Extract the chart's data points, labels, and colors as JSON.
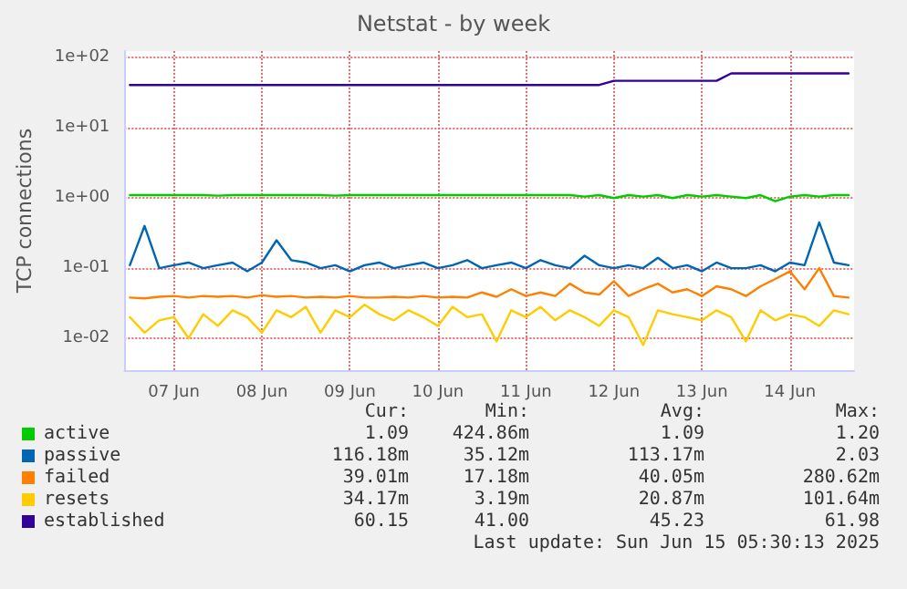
{
  "chart_data": {
    "type": "line",
    "title": "Netstat - by week",
    "ylabel": "TCP connections",
    "x": [
      "2025-06-07T00:00",
      "2025-06-07T04:00",
      "2025-06-07T08:00",
      "2025-06-07T12:00",
      "2025-06-07T16:00",
      "2025-06-07T20:00",
      "2025-06-08T00:00",
      "2025-06-08T04:00",
      "2025-06-08T08:00",
      "2025-06-08T12:00",
      "2025-06-08T16:00",
      "2025-06-08T20:00",
      "2025-06-09T00:00",
      "2025-06-09T04:00",
      "2025-06-09T08:00",
      "2025-06-09T12:00",
      "2025-06-09T16:00",
      "2025-06-09T20:00",
      "2025-06-10T00:00",
      "2025-06-10T04:00",
      "2025-06-10T08:00",
      "2025-06-10T12:00",
      "2025-06-10T16:00",
      "2025-06-10T20:00",
      "2025-06-11T00:00",
      "2025-06-11T04:00",
      "2025-06-11T08:00",
      "2025-06-11T12:00",
      "2025-06-11T16:00",
      "2025-06-11T20:00",
      "2025-06-12T00:00",
      "2025-06-12T04:00",
      "2025-06-12T08:00",
      "2025-06-12T12:00",
      "2025-06-12T16:00",
      "2025-06-12T20:00",
      "2025-06-13T00:00",
      "2025-06-13T04:00",
      "2025-06-13T08:00",
      "2025-06-13T12:00",
      "2025-06-13T16:00",
      "2025-06-13T20:00",
      "2025-06-14T00:00",
      "2025-06-14T04:00",
      "2025-06-14T08:00",
      "2025-06-14T12:00",
      "2025-06-14T16:00",
      "2025-06-14T20:00",
      "2025-06-15T00:00",
      "2025-06-15T04:00"
    ],
    "series": [
      {
        "name": "active",
        "color": "#00cc00",
        "values": [
          1.1,
          1.1,
          1.1,
          1.1,
          1.1,
          1.1,
          1.08,
          1.1,
          1.1,
          1.1,
          1.1,
          1.1,
          1.1,
          1.1,
          1.08,
          1.1,
          1.1,
          1.1,
          1.1,
          1.1,
          1.1,
          1.1,
          1.1,
          1.1,
          1.1,
          1.1,
          1.1,
          1.1,
          1.1,
          1.1,
          1.1,
          1.05,
          1.1,
          1.0,
          1.1,
          1.05,
          1.1,
          1.0,
          1.1,
          1.05,
          1.1,
          1.05,
          1.0,
          1.1,
          0.9,
          1.05,
          1.1,
          1.05,
          1.1,
          1.1
        ]
      },
      {
        "name": "passive",
        "color": "#0066b3",
        "values": [
          0.11,
          0.4,
          0.1,
          0.11,
          0.12,
          0.1,
          0.11,
          0.12,
          0.09,
          0.12,
          0.25,
          0.13,
          0.12,
          0.1,
          0.11,
          0.09,
          0.11,
          0.12,
          0.1,
          0.11,
          0.12,
          0.1,
          0.11,
          0.13,
          0.1,
          0.11,
          0.12,
          0.1,
          0.13,
          0.11,
          0.1,
          0.15,
          0.11,
          0.1,
          0.11,
          0.1,
          0.14,
          0.1,
          0.11,
          0.09,
          0.12,
          0.1,
          0.1,
          0.11,
          0.09,
          0.12,
          0.11,
          0.45,
          0.12,
          0.11
        ]
      },
      {
        "name": "failed",
        "color": "#ff8000",
        "values": [
          0.038,
          0.037,
          0.039,
          0.04,
          0.038,
          0.04,
          0.039,
          0.04,
          0.038,
          0.041,
          0.039,
          0.04,
          0.038,
          0.039,
          0.038,
          0.04,
          0.038,
          0.038,
          0.039,
          0.038,
          0.04,
          0.038,
          0.039,
          0.038,
          0.045,
          0.039,
          0.05,
          0.04,
          0.045,
          0.04,
          0.06,
          0.045,
          0.042,
          0.065,
          0.04,
          0.05,
          0.06,
          0.045,
          0.05,
          0.04,
          0.055,
          0.05,
          0.04,
          0.055,
          0.07,
          0.09,
          0.05,
          0.1,
          0.04,
          0.038
        ]
      },
      {
        "name": "resets",
        "color": "#ffcc00",
        "values": [
          0.02,
          0.012,
          0.018,
          0.02,
          0.01,
          0.022,
          0.015,
          0.025,
          0.02,
          0.012,
          0.025,
          0.02,
          0.028,
          0.012,
          0.025,
          0.02,
          0.03,
          0.022,
          0.018,
          0.025,
          0.02,
          0.015,
          0.028,
          0.02,
          0.022,
          0.009,
          0.025,
          0.02,
          0.028,
          0.018,
          0.025,
          0.02,
          0.015,
          0.025,
          0.02,
          0.008,
          0.025,
          0.022,
          0.02,
          0.018,
          0.025,
          0.02,
          0.009,
          0.025,
          0.018,
          0.022,
          0.02,
          0.015,
          0.025,
          0.022
        ]
      },
      {
        "name": "established",
        "color": "#330099",
        "values": [
          41,
          41,
          41,
          41,
          41,
          41,
          41,
          41,
          41,
          41,
          41,
          41,
          41,
          41,
          41,
          41,
          41,
          41,
          41,
          41,
          41,
          41,
          41,
          41,
          41,
          41,
          41,
          41,
          41,
          41,
          41,
          41,
          41,
          47,
          47,
          47,
          47,
          47,
          47,
          47,
          47,
          60,
          60,
          60,
          60,
          60,
          60,
          60,
          60,
          60
        ]
      }
    ],
    "xlim": [
      "2025-06-06T22:30",
      "2025-06-15T05:30"
    ],
    "xticks": [
      {
        "value": "2025-06-07T12:00",
        "label": "07 Jun"
      },
      {
        "value": "2025-06-08T12:00",
        "label": "08 Jun"
      },
      {
        "value": "2025-06-09T12:00",
        "label": "09 Jun"
      },
      {
        "value": "2025-06-10T12:00",
        "label": "10 Jun"
      },
      {
        "value": "2025-06-11T12:00",
        "label": "11 Jun"
      },
      {
        "value": "2025-06-12T12:00",
        "label": "12 Jun"
      },
      {
        "value": "2025-06-13T12:00",
        "label": "13 Jun"
      },
      {
        "value": "2025-06-14T12:00",
        "label": "14 Jun"
      }
    ],
    "ylim": [
      0.0035,
      125
    ],
    "yticks": [
      {
        "value": 0.01,
        "label": "1e-02"
      },
      {
        "value": 0.1,
        "label": "1e-01"
      },
      {
        "value": 1,
        "label": "1e+00"
      },
      {
        "value": 10,
        "label": "1e+01"
      },
      {
        "value": 100,
        "label": "1e+02"
      }
    ],
    "log": "y",
    "grid": true,
    "legend": "bottom left",
    "marker": "none",
    "line_style": "solid",
    "annotations": [
      "Cur:",
      "Min:",
      "Avg:",
      "Max:",
      "1.09",
      "424.86m",
      "1.09",
      "1.20",
      "116.18m",
      "35.12m",
      "113.17m",
      "2.03",
      "39.01m",
      "17.18m",
      "40.05m",
      "280.62m",
      "34.17m",
      "3.19m",
      "20.87m",
      "101.64m",
      "60.15",
      "41.00",
      "45.23",
      "61.98",
      "Last update: Sun Jun 15 05:30:13 2025"
    ]
  }
}
